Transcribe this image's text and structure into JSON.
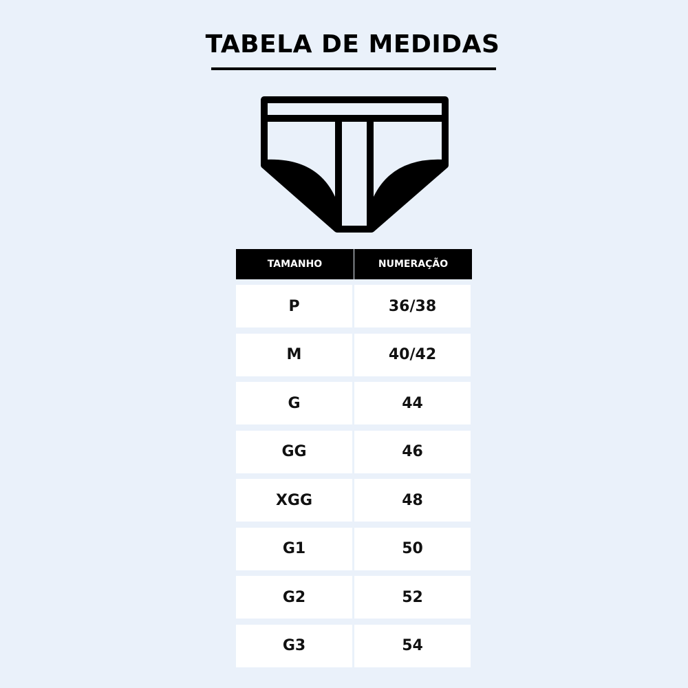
{
  "title": "TABELA DE MEDIDAS",
  "icon": "briefs-underwear-icon",
  "colors": {
    "background": "#EAF1FA",
    "header": "#000000",
    "cell": "#FFFFFF"
  },
  "table": {
    "headers": [
      "TAMANHO",
      "NUMERAÇÃO"
    ],
    "rows": [
      {
        "size": "P",
        "number": "36/38"
      },
      {
        "size": "M",
        "number": "40/42"
      },
      {
        "size": "G",
        "number": "44"
      },
      {
        "size": "GG",
        "number": "46"
      },
      {
        "size": "XGG",
        "number": "48"
      },
      {
        "size": "G1",
        "number": "50"
      },
      {
        "size": "G2",
        "number": "52"
      },
      {
        "size": "G3",
        "number": "54"
      }
    ]
  }
}
